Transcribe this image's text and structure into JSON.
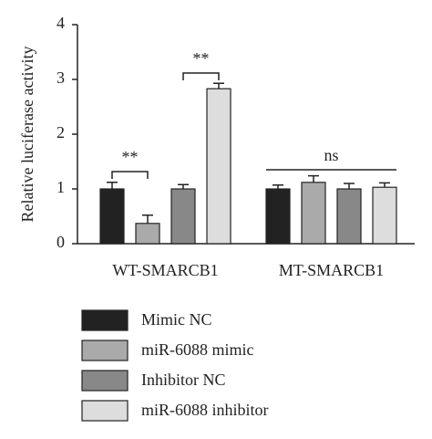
{
  "chart_data": {
    "type": "bar",
    "y_label": "Relative luciferase activity",
    "categories": [
      "WT-SMARCB1",
      "MT-SMARCB1"
    ],
    "series": [
      {
        "name": "Mimic NC",
        "color": "#222222",
        "values": [
          1.0,
          1.0
        ],
        "errors": [
          0.12,
          0.07
        ]
      },
      {
        "name": "miR-6088 mimic",
        "color": "#aaaaaa",
        "values": [
          0.37,
          1.12
        ],
        "errors": [
          0.15,
          0.12
        ]
      },
      {
        "name": "Inhibitor NC",
        "color": "#888888",
        "values": [
          1.0,
          1.0
        ],
        "errors": [
          0.08,
          0.1
        ]
      },
      {
        "name": "miR-6088 inhibitor",
        "color": "#dddddd",
        "values": [
          2.83,
          1.03
        ],
        "errors": [
          0.1,
          0.08
        ]
      }
    ],
    "ylim": [
      0,
      4
    ],
    "yticks": [
      0,
      1,
      2,
      3,
      4
    ],
    "annotations": [
      "**",
      "**",
      "ns"
    ]
  }
}
